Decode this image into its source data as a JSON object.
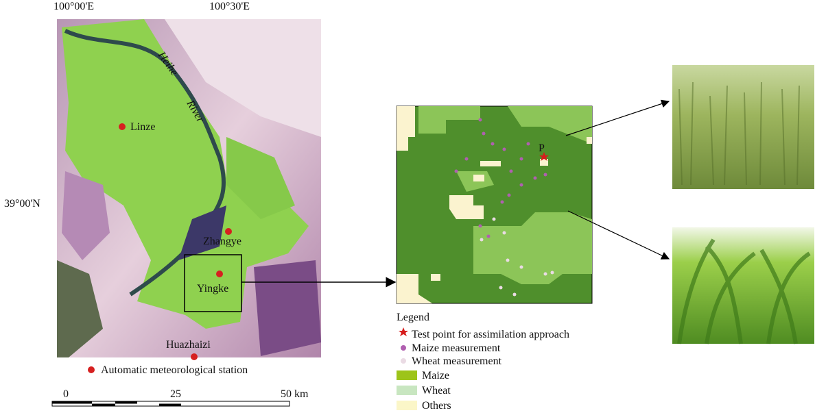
{
  "map": {
    "lon_labels": [
      "100°00'E",
      "100°30'E"
    ],
    "lat_label": "39°00'N",
    "river": [
      "Heihe",
      "River"
    ],
    "stations": [
      "Linze",
      "Zhangye",
      "Yingke",
      "Huazhaizi"
    ],
    "station_legend": "Automatic meteorological station",
    "scale": [
      "0",
      "25",
      "50 km"
    ]
  },
  "detail": {
    "point_label": "P",
    "legend": {
      "title": "Legend",
      "items": [
        "Test point for assimilation approach",
        "Maize measurement",
        "Wheat measurement",
        "Maize",
        "Wheat",
        "Others"
      ]
    }
  }
}
